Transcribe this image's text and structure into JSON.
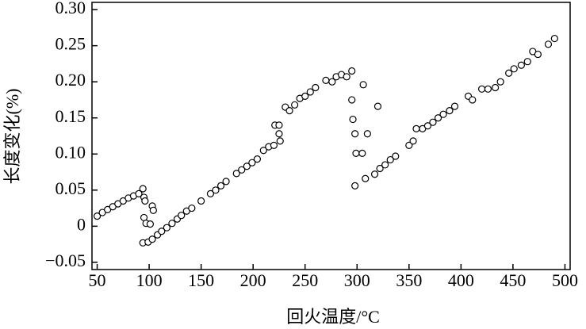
{
  "chart_data": {
    "type": "scatter",
    "x_label": "回火温度/°C",
    "y_label": "长度变化(%)",
    "xlim": [
      45,
      505
    ],
    "ylim": [
      -0.06,
      0.31
    ],
    "xticks": [
      50,
      100,
      150,
      200,
      250,
      300,
      350,
      400,
      450,
      500
    ],
    "yticks": [
      {
        "value": 0.3,
        "label": "0.30"
      },
      0.25,
      {
        "value": 0.2,
        "label": "0.20"
      },
      0.15,
      {
        "value": 0.1,
        "label": "0.10"
      },
      0.05,
      0,
      {
        "value": -0.05,
        "label": "−0.05"
      }
    ],
    "color": "#000000",
    "x": [
      50,
      55,
      60,
      65,
      70,
      75,
      80,
      85,
      90,
      94,
      95,
      96,
      95,
      97,
      101,
      103,
      104,
      94,
      99,
      103,
      108,
      112,
      117,
      122,
      127,
      131,
      136,
      141,
      150,
      159,
      164,
      169,
      174,
      184,
      189,
      194,
      199,
      204,
      210,
      215,
      220,
      221,
      225,
      225,
      226,
      231,
      235,
      240,
      245,
      250,
      255,
      260,
      270,
      276,
      280,
      285,
      290,
      295,
      295,
      296,
      298,
      299,
      305,
      306,
      310,
      320,
      298,
      308,
      317,
      322,
      327,
      332,
      337,
      350,
      354,
      357,
      363,
      368,
      373,
      378,
      383,
      389,
      394,
      407,
      411,
      420,
      426,
      433,
      438,
      446,
      451,
      458,
      464,
      469,
      474,
      484,
      490
    ],
    "y": [
      0.014,
      0.019,
      0.023,
      0.027,
      0.031,
      0.035,
      0.039,
      0.042,
      0.045,
      0.052,
      0.04,
      0.035,
      0.012,
      0.004,
      0.003,
      0.028,
      0.022,
      -0.023,
      -0.022,
      -0.018,
      -0.012,
      -0.007,
      -0.002,
      0.004,
      0.01,
      0.015,
      0.021,
      0.025,
      0.035,
      0.045,
      0.05,
      0.056,
      0.062,
      0.073,
      0.078,
      0.083,
      0.088,
      0.093,
      0.105,
      0.11,
      0.112,
      0.14,
      0.14,
      0.128,
      0.118,
      0.165,
      0.16,
      0.168,
      0.177,
      0.18,
      0.186,
      0.192,
      0.202,
      0.2,
      0.207,
      0.21,
      0.207,
      0.215,
      0.175,
      0.148,
      0.128,
      0.101,
      0.101,
      0.196,
      0.128,
      0.166,
      0.056,
      0.066,
      0.072,
      0.08,
      0.085,
      0.092,
      0.097,
      0.112,
      0.118,
      0.135,
      0.135,
      0.139,
      0.144,
      0.15,
      0.155,
      0.16,
      0.166,
      0.18,
      0.175,
      0.19,
      0.19,
      0.192,
      0.2,
      0.212,
      0.218,
      0.223,
      0.228,
      0.242,
      0.238,
      0.252,
      0.26
    ]
  }
}
